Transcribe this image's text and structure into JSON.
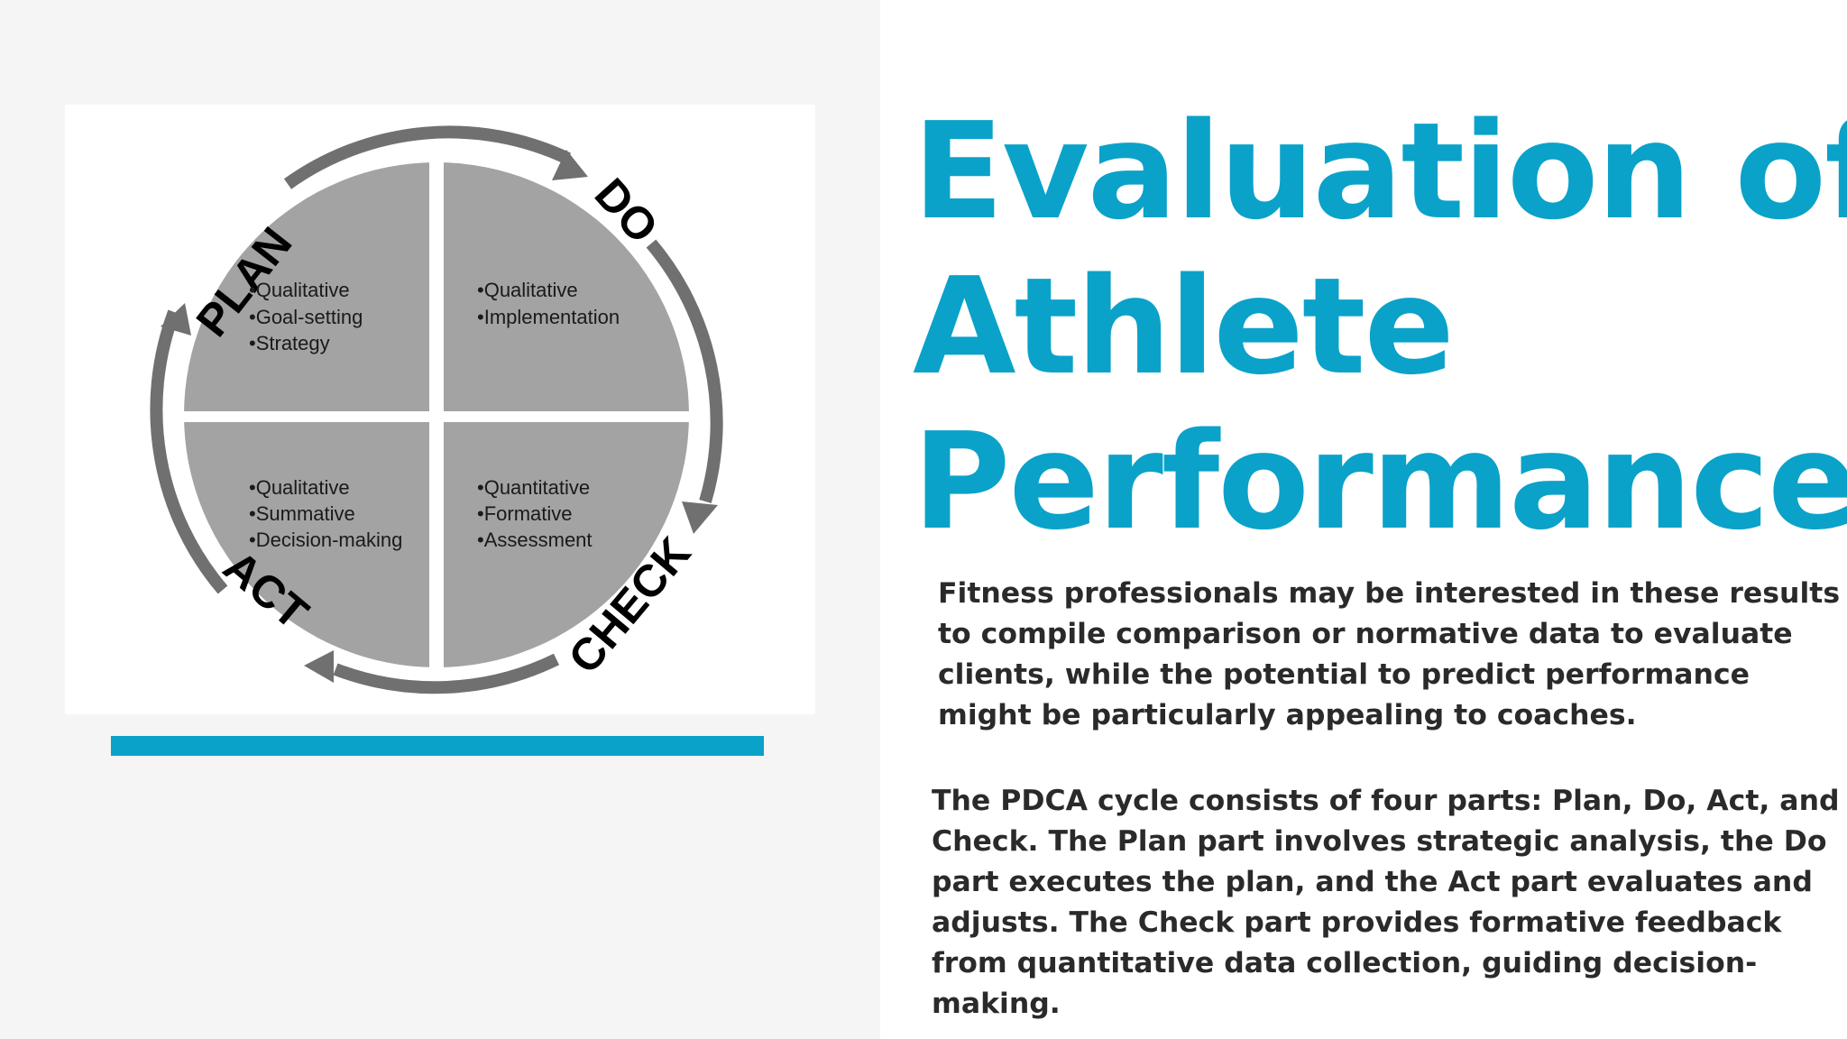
{
  "colors": {
    "accent": "#0aa2c9",
    "quadrant_fill": "#a3a3a3",
    "arrow": "#707070",
    "body_text": "#2a2a2a"
  },
  "diagram": {
    "stages": {
      "plan": "PLAN",
      "do": "DO",
      "check": "CHECK",
      "act": "ACT"
    },
    "quadrants": {
      "plan": [
        "•Qualitative",
        "•Goal-setting",
        "•Strategy"
      ],
      "do": [
        "•Qualitative",
        "•Implementation"
      ],
      "act": [
        "•Qualitative",
        "•Summative",
        "•Decision-making"
      ],
      "check": [
        "•Quantitative",
        "•Formative",
        "•Assessment"
      ]
    }
  },
  "title": {
    "line1": "Evaluation of",
    "line2": "Athlete",
    "line3": "Performance"
  },
  "paragraph1": {
    "lines": [
      "Fitness professionals may be interested in these results",
      "to compile comparison or normative data to evaluate",
      "clients, while the potential to predict performance",
      "might be particularly appealing to coaches."
    ]
  },
  "paragraph2": {
    "lines": [
      "The PDCA cycle consists of four parts: Plan, Do, Act, and",
      "Check. The Plan part involves strategic analysis, the Do",
      "part executes the plan, and the Act part evaluates and",
      "adjusts. The Check part provides formative feedback",
      "from quantitative data collection, guiding decision-",
      "making."
    ]
  }
}
